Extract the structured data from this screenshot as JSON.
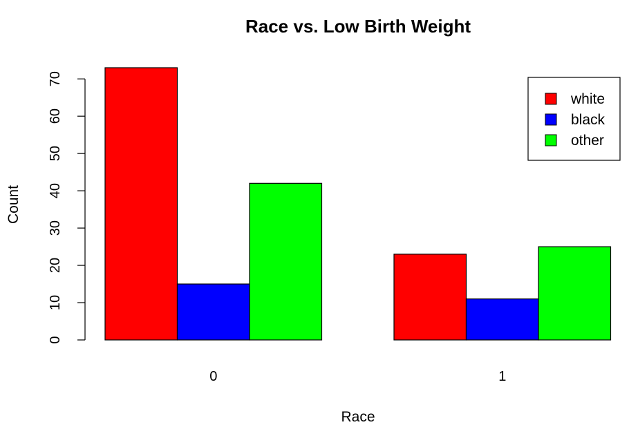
{
  "chart_data": {
    "type": "bar",
    "title": "Race vs. Low Birth Weight",
    "xlabel": "Race",
    "ylabel": "Count",
    "categories": [
      "0",
      "1"
    ],
    "series": [
      {
        "name": "white",
        "color": "#ff0000",
        "values": [
          73,
          23
        ]
      },
      {
        "name": "black",
        "color": "#0000ff",
        "values": [
          15,
          11
        ]
      },
      {
        "name": "other",
        "color": "#00ff00",
        "values": [
          42,
          25
        ]
      }
    ],
    "yticks": [
      0,
      10,
      20,
      30,
      40,
      50,
      60,
      70
    ],
    "ylim": [
      0,
      73
    ],
    "grid": false,
    "legend_position": "top-right"
  }
}
